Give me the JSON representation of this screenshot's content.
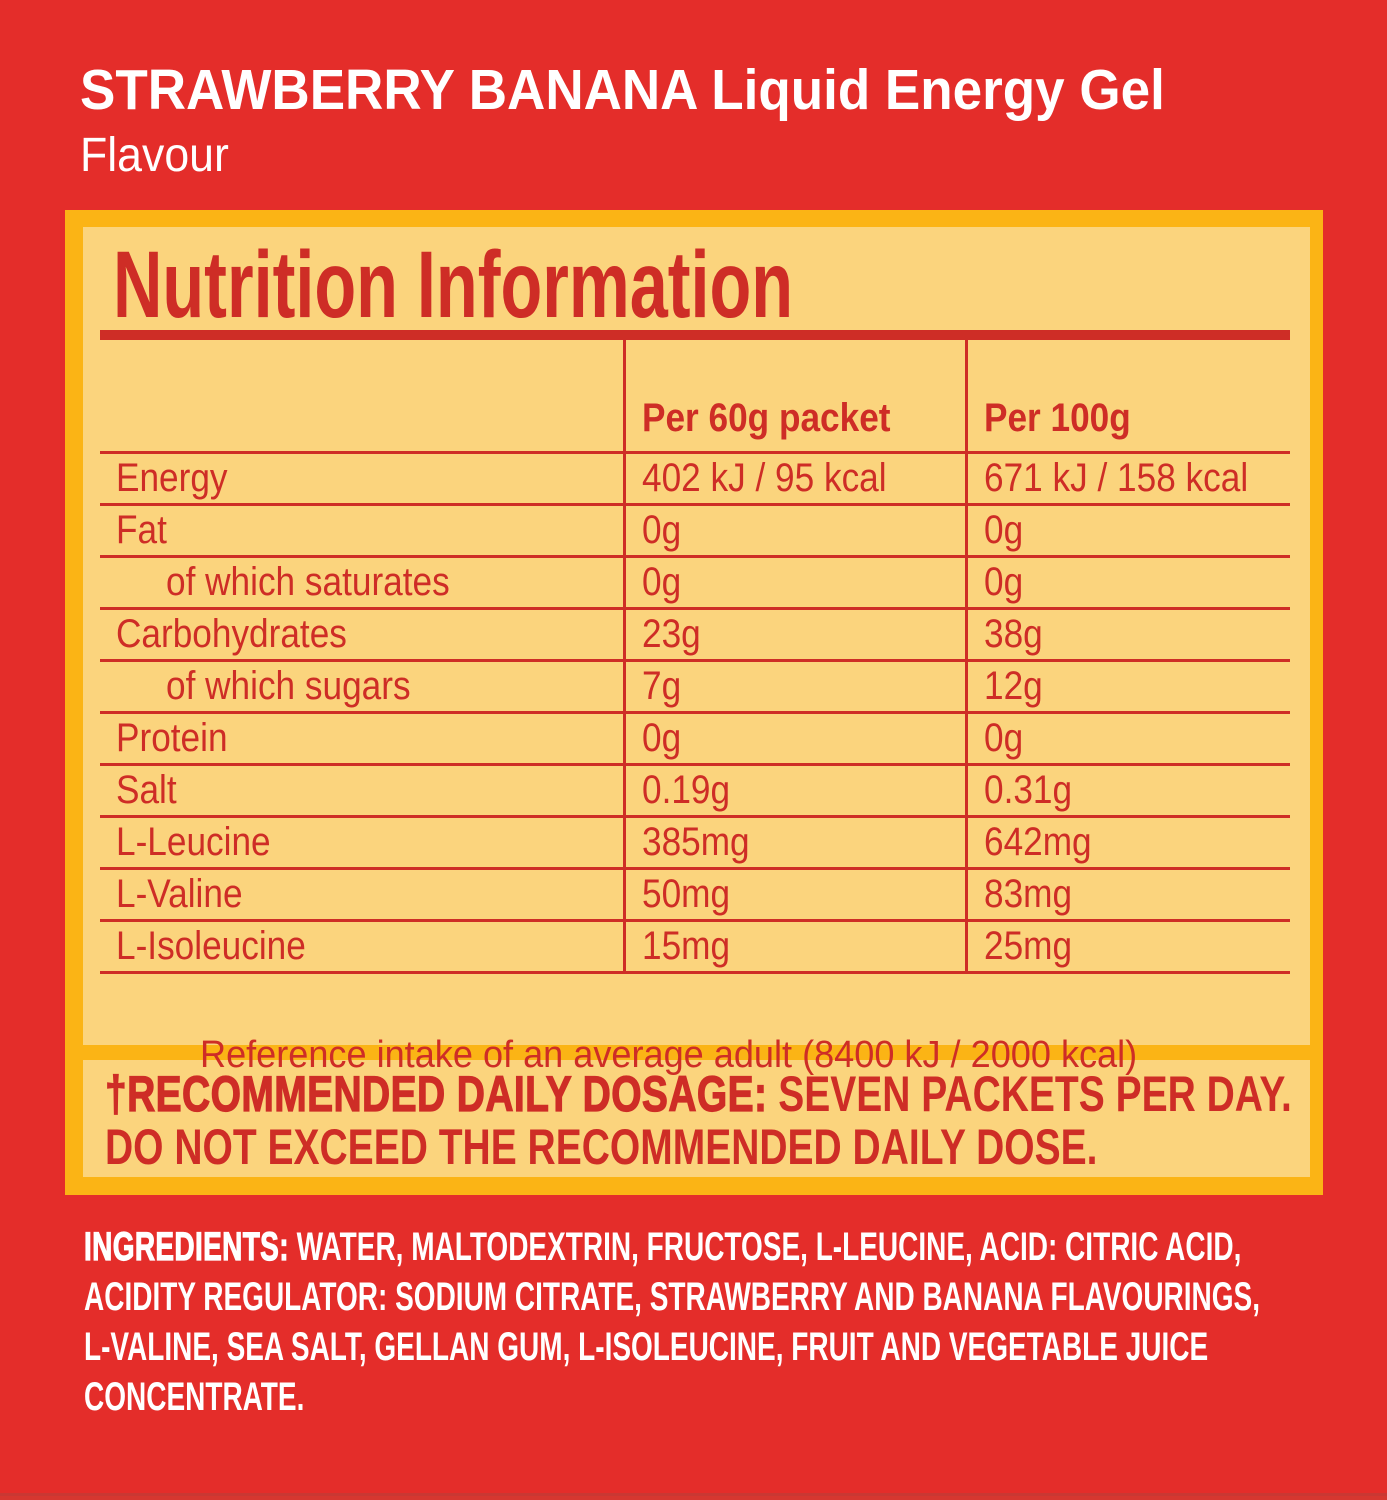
{
  "colors": {
    "bg-red": "#E42D2A",
    "gold": "#FBB415",
    "cream": "#FBD47D",
    "label-red": "#CE2D26",
    "white": "#FFFFFF",
    "edge-dark": "#B2423A"
  },
  "header": {
    "title": "STRAWBERRY BANANA Liquid Energy Gel",
    "subtitle": "Flavour"
  },
  "nutrition": {
    "title": "Nutrition Information",
    "col_per_packet": "Per 60g packet",
    "col_per_100g": "Per 100g",
    "rows": [
      {
        "label": "Energy",
        "per_packet": "402 kJ / 95 kcal",
        "per_100g": "671 kJ / 158 kcal"
      },
      {
        "label": "Fat",
        "per_packet": "0g",
        "per_100g": "0g"
      },
      {
        "label": "of which saturates",
        "per_packet": "0g",
        "per_100g": "0g"
      },
      {
        "label": "Carbohydrates",
        "per_packet": "23g",
        "per_100g": "38g"
      },
      {
        "label": "of which sugars",
        "per_packet": "7g",
        "per_100g": "12g"
      },
      {
        "label": "Protein",
        "per_packet": "0g",
        "per_100g": "0g"
      },
      {
        "label": "Salt",
        "per_packet": "0.19g",
        "per_100g": "0.31g"
      },
      {
        "label": "L-Leucine",
        "per_packet": "385mg",
        "per_100g": "642mg"
      },
      {
        "label": "L-Valine",
        "per_packet": "50mg",
        "per_100g": "83mg"
      },
      {
        "label": "L-Isoleucine",
        "per_packet": "15mg",
        "per_100g": "25mg"
      }
    ],
    "reference_note": "Reference intake of an average adult  (8400 kJ / 2000 kcal)"
  },
  "dosage": {
    "label": "†RECOMMENDED DAILY DOSAGE:",
    "line1_rest": " SEVEN PACKETS PER DAY.",
    "line2": "DO NOT EXCEED THE RECOMMENDED DAILY DOSE."
  },
  "ingredients": {
    "label": "INGREDIENTS:",
    "text": " WATER, MALTODEXTRIN, FRUCTOSE, L-LEUCINE, ACID: CITRIC ACID,\nACIDITY REGULATOR: SODIUM CITRATE, STRAWBERRY AND BANANA FLAVOURINGS,\nL-VALINE, SEA SALT, GELLAN GUM, L-ISOLEUCINE, FRUIT AND VEGETABLE JUICE\nCONCENTRATE."
  }
}
